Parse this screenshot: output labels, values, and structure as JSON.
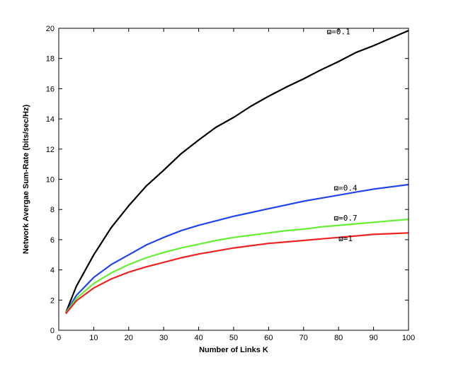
{
  "chart_data": {
    "type": "line",
    "title": "",
    "xlabel": "Number of Links K",
    "ylabel": "Network Avergae Sum-Rate (bits/sec/Hz)",
    "xlim": [
      0,
      100
    ],
    "ylim": [
      0,
      20
    ],
    "xticks": [
      0,
      10,
      20,
      30,
      40,
      50,
      60,
      70,
      80,
      90,
      100
    ],
    "yticks": [
      0,
      2,
      4,
      6,
      8,
      10,
      12,
      14,
      16,
      18,
      20
    ],
    "grid": false,
    "legend": "none",
    "series": [
      {
        "name": "ϖ=0.1",
        "color": "#000000",
        "x": [
          2,
          5,
          10,
          15,
          20,
          25,
          30,
          35,
          40,
          45,
          50,
          55,
          60,
          65,
          70,
          75,
          80,
          85,
          90,
          95,
          100
        ],
        "y": [
          1.15,
          2.9,
          5.0,
          6.8,
          8.25,
          9.55,
          10.6,
          11.7,
          12.6,
          13.45,
          14.1,
          14.85,
          15.5,
          16.1,
          16.65,
          17.25,
          17.8,
          18.4,
          18.85,
          19.35,
          19.85
        ]
      },
      {
        "name": "ϖ=0.4",
        "color": "#2244ee",
        "x": [
          2,
          5,
          10,
          15,
          20,
          25,
          30,
          35,
          40,
          45,
          50,
          55,
          60,
          65,
          70,
          75,
          80,
          85,
          90,
          95,
          100
        ],
        "y": [
          1.15,
          2.3,
          3.5,
          4.35,
          5.0,
          5.65,
          6.15,
          6.6,
          6.95,
          7.25,
          7.55,
          7.8,
          8.05,
          8.3,
          8.55,
          8.75,
          8.95,
          9.15,
          9.35,
          9.5,
          9.65
        ]
      },
      {
        "name": "ϖ=0.7",
        "color": "#66ee33",
        "x": [
          2,
          5,
          10,
          15,
          20,
          25,
          30,
          35,
          40,
          45,
          50,
          55,
          60,
          65,
          70,
          75,
          80,
          85,
          90,
          95,
          100
        ],
        "y": [
          1.15,
          2.1,
          3.1,
          3.8,
          4.35,
          4.8,
          5.15,
          5.45,
          5.7,
          5.95,
          6.15,
          6.3,
          6.45,
          6.6,
          6.7,
          6.85,
          6.95,
          7.05,
          7.15,
          7.25,
          7.35
        ]
      },
      {
        "name": "ϖ=1",
        "color": "#ee2222",
        "x": [
          2,
          5,
          10,
          15,
          20,
          25,
          30,
          35,
          40,
          45,
          50,
          55,
          60,
          65,
          70,
          75,
          80,
          85,
          90,
          95,
          100
        ],
        "y": [
          1.1,
          1.95,
          2.8,
          3.4,
          3.85,
          4.2,
          4.5,
          4.8,
          5.05,
          5.25,
          5.45,
          5.6,
          5.75,
          5.85,
          5.95,
          6.05,
          6.15,
          6.25,
          6.35,
          6.4,
          6.45
        ]
      }
    ]
  }
}
